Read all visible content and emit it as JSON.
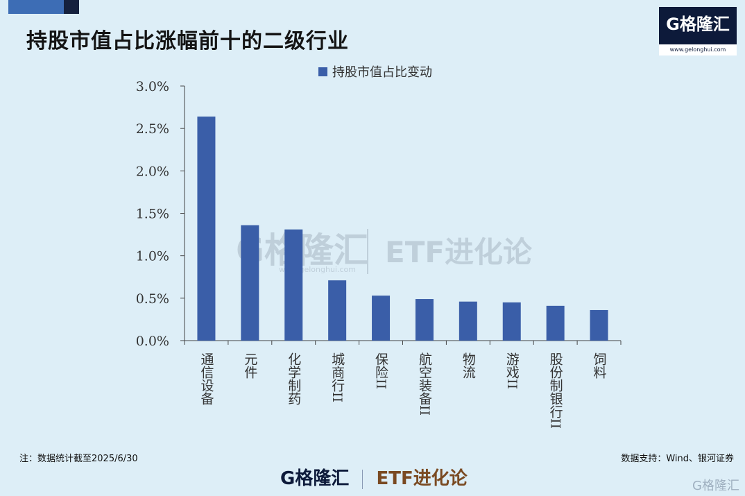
{
  "title": "持股市值占比涨幅前十的二级行业",
  "brand": {
    "logo_text": "G格隆汇",
    "url": "www.gelonghui.com"
  },
  "watermark": {
    "left": "G格隆汇",
    "url": "www.gelonghui.com",
    "right": "ETF进化论"
  },
  "footnote": "注：数据统计截至2025/6/30",
  "source": "数据支持：Wind、银河证券",
  "footer": {
    "logo_text": "G格隆汇",
    "etf_text": "ETF进化论"
  },
  "corner_mark": "G格隆汇",
  "chart_data": {
    "type": "bar",
    "categories": [
      "通信设备",
      "元件",
      "化学制药",
      "城商行II",
      "保险II",
      "航空装备II",
      "物流",
      "游戏II",
      "股份制银行II",
      "饲料"
    ],
    "series": [
      {
        "name": "持股市值占比变动",
        "values": [
          2.64,
          1.36,
          1.31,
          0.71,
          0.53,
          0.49,
          0.46,
          0.45,
          0.41,
          0.36
        ],
        "color": "#3a5ea8"
      }
    ],
    "ylim": [
      0,
      3.0
    ],
    "yticks": [
      "0.0%",
      "0.5%",
      "1.0%",
      "1.5%",
      "2.0%",
      "2.5%",
      "3.0%"
    ],
    "ytick_values": [
      0,
      0.5,
      1.0,
      1.5,
      2.0,
      2.5,
      3.0
    ],
    "legend": "top-center",
    "grid": false
  }
}
